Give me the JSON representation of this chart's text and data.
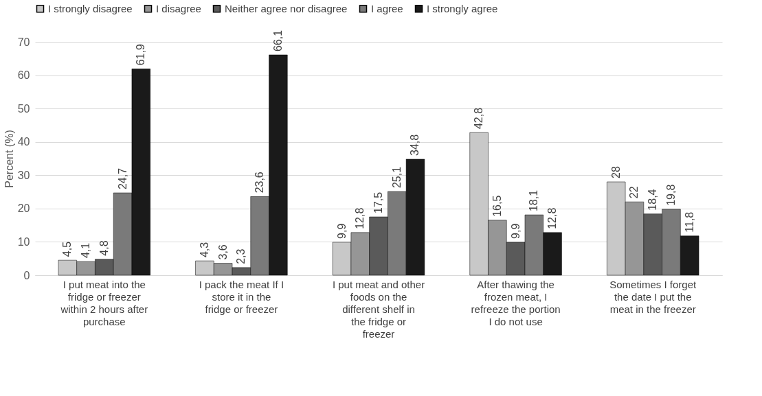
{
  "chart_data": {
    "type": "bar",
    "ylabel": "Percent  (%)",
    "categories": [
      "I put meat into the fridge or freezer within 2 hours after purchase",
      "I pack the meat If I store it in the fridge or freezer",
      "I put meat and other foods on the different shelf in the fridge or freezer",
      "After thawing the frozen meat, I refreeze the portion I do not use",
      "Sometimes I forget the date I put the meat in the freezer"
    ],
    "series": [
      {
        "name": "I strongly disagree",
        "color": "#c8c8c8",
        "values": [
          4.5,
          4.3,
          9.9,
          42.8,
          28
        ],
        "value_labels": [
          "4,5",
          "4,3",
          "9,9",
          "42,8",
          "28"
        ]
      },
      {
        "name": "I disagree",
        "color": "#969696",
        "values": [
          4.1,
          3.6,
          12.8,
          16.5,
          22
        ],
        "value_labels": [
          "4,1",
          "3,6",
          "12,8",
          "16,5",
          "22"
        ]
      },
      {
        "name": "Neither agree nor disagree",
        "color": "#5a5a5a",
        "values": [
          4.8,
          2.3,
          17.5,
          9.9,
          18.4
        ],
        "value_labels": [
          "4,8",
          "2,3",
          "17,5",
          "9,9",
          "18,4"
        ]
      },
      {
        "name": "I agree",
        "color": "#7a7a7a",
        "values": [
          24.7,
          23.6,
          25.1,
          18.1,
          19.8
        ],
        "value_labels": [
          "24,7",
          "23,6",
          "25,1",
          "18,1",
          "19,8"
        ]
      },
      {
        "name": "I strongly agree",
        "color": "#1a1a1a",
        "values": [
          61.9,
          66.1,
          34.8,
          12.8,
          11.8
        ],
        "value_labels": [
          "61,9",
          "66,1",
          "34,8",
          "12,8",
          "11,8"
        ]
      }
    ],
    "ylim": [
      0,
      70
    ],
    "yticks": [
      0,
      10,
      20,
      30,
      40,
      50,
      60,
      70
    ],
    "grid": "y",
    "legend": "top"
  }
}
